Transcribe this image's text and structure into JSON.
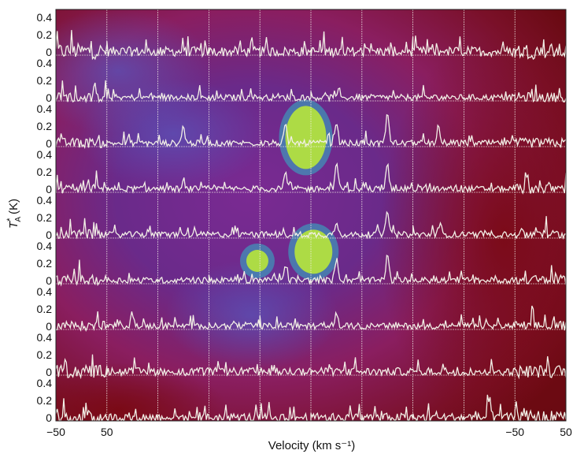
{
  "chart_data": {
    "type": "line",
    "description_grid": "9x10 grid of spectra overlaid on a color map",
    "grid": {
      "rows": 9,
      "cols": 10
    },
    "xlabel": "Velocity (km s⁻¹)",
    "ylabel_main": "T",
    "ylabel_sub": "A",
    "ylabel_sup": "*",
    "ylabel_unit": "(K)",
    "x_ticks_left": [
      "−50",
      "50"
    ],
    "x_ticks_right": [
      "−50",
      "50"
    ],
    "y_ticks": [
      "0.4",
      "0.2",
      "0"
    ],
    "panel_xlim": [
      -50,
      50
    ],
    "panel_ylim": [
      -0.05,
      0.45
    ],
    "grid_on": true,
    "line_color": "#f2efe6",
    "background_colormap": [
      "#5a1a8c",
      "#8a1e6a",
      "#7a0f20",
      "#6a0a10"
    ],
    "emission_colors": [
      "#b8e63a",
      "#2fb6c8"
    ],
    "spectra_peaks": [
      {
        "row": 0,
        "features": []
      },
      {
        "row": 1,
        "features": []
      },
      {
        "row": 2,
        "features": [
          {
            "col": 2,
            "v": 0,
            "amp": 0.2
          },
          {
            "col": 4,
            "v": 0,
            "amp": 0.2
          },
          {
            "col": 5,
            "v": 0,
            "amp": 0.25
          },
          {
            "col": 6,
            "v": 0,
            "amp": 0.35
          },
          {
            "col": 7,
            "v": 0,
            "amp": 0.12
          }
        ]
      },
      {
        "row": 3,
        "features": [
          {
            "col": 4,
            "v": 0,
            "amp": 0.18
          },
          {
            "col": 5,
            "v": 0,
            "amp": 0.3
          },
          {
            "col": 6,
            "v": 0,
            "amp": 0.3
          }
        ]
      },
      {
        "row": 4,
        "features": [
          {
            "col": 5,
            "v": 0,
            "amp": 0.15
          },
          {
            "col": 6,
            "v": 0,
            "amp": 0.3
          },
          {
            "col": 7,
            "v": 0,
            "amp": 0.1
          }
        ]
      },
      {
        "row": 5,
        "features": [
          {
            "col": 4,
            "v": 0,
            "amp": 0.2
          },
          {
            "col": 5,
            "v": 0,
            "amp": 0.25
          },
          {
            "col": 6,
            "v": 0,
            "amp": 0.3
          }
        ]
      },
      {
        "row": 6,
        "features": [
          {
            "col": 1,
            "v": 0,
            "amp": 0.15
          },
          {
            "col": 5,
            "v": 0,
            "amp": 0.15
          }
        ]
      },
      {
        "row": 7,
        "features": []
      },
      {
        "row": 8,
        "features": [
          {
            "col": 8,
            "v": 0,
            "amp": 0.15
          }
        ]
      }
    ]
  }
}
